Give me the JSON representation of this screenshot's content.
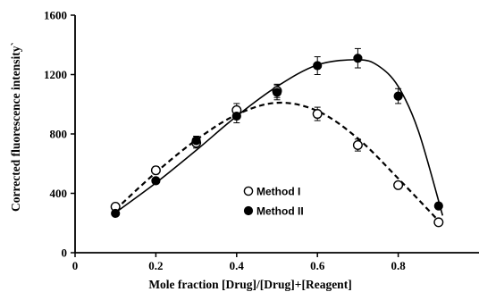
{
  "chart_data": {
    "type": "scatter",
    "title": "",
    "xlabel": "Mole fraction [Drug]/[Drug]+[Reagent]",
    "ylabel": "Corrected fluorescence intensity`",
    "xlim": [
      0,
      1.0
    ],
    "ylim": [
      0,
      1600
    ],
    "xticks": [
      0,
      0.2,
      0.4,
      0.6,
      0.8
    ],
    "xtick_labels": [
      "0",
      "0.2",
      "0.4",
      "0.6",
      "0.8"
    ],
    "yticks": [
      0,
      400,
      800,
      1200,
      1600
    ],
    "ytick_labels": [
      "0",
      "400",
      "800",
      "1200",
      "1600"
    ],
    "grid": false,
    "legend_position": "center",
    "series": [
      {
        "name": "Method I",
        "marker": "open-circle",
        "line": "dashed",
        "color": "#000000",
        "x": [
          0.1,
          0.2,
          0.3,
          0.4,
          0.5,
          0.6,
          0.7,
          0.8,
          0.9
        ],
        "y": [
          310,
          555,
          740,
          960,
          1090,
          935,
          725,
          455,
          205
        ],
        "error": [
          20,
          25,
          35,
          45,
          45,
          45,
          40,
          20,
          20
        ],
        "fit": [
          [
            0.1,
            290
          ],
          [
            0.2,
            540
          ],
          [
            0.3,
            760
          ],
          [
            0.4,
            930
          ],
          [
            0.5,
            1010
          ],
          [
            0.6,
            955
          ],
          [
            0.7,
            770
          ],
          [
            0.8,
            500
          ],
          [
            0.9,
            215
          ]
        ]
      },
      {
        "name": "Method II",
        "marker": "filled-circle",
        "line": "solid",
        "color": "#000000",
        "x": [
          0.1,
          0.2,
          0.3,
          0.4,
          0.5,
          0.6,
          0.7,
          0.8,
          0.9
        ],
        "y": [
          265,
          485,
          755,
          920,
          1080,
          1260,
          1310,
          1055,
          315
        ],
        "error": [
          15,
          20,
          30,
          45,
          50,
          60,
          65,
          50,
          20
        ],
        "fit": [
          [
            0.1,
            270
          ],
          [
            0.2,
            470
          ],
          [
            0.3,
            690
          ],
          [
            0.4,
            920
          ],
          [
            0.5,
            1120
          ],
          [
            0.6,
            1265
          ],
          [
            0.7,
            1300
          ],
          [
            0.75,
            1260
          ],
          [
            0.8,
            1120
          ],
          [
            0.85,
            820
          ],
          [
            0.91,
            250
          ]
        ]
      }
    ]
  }
}
